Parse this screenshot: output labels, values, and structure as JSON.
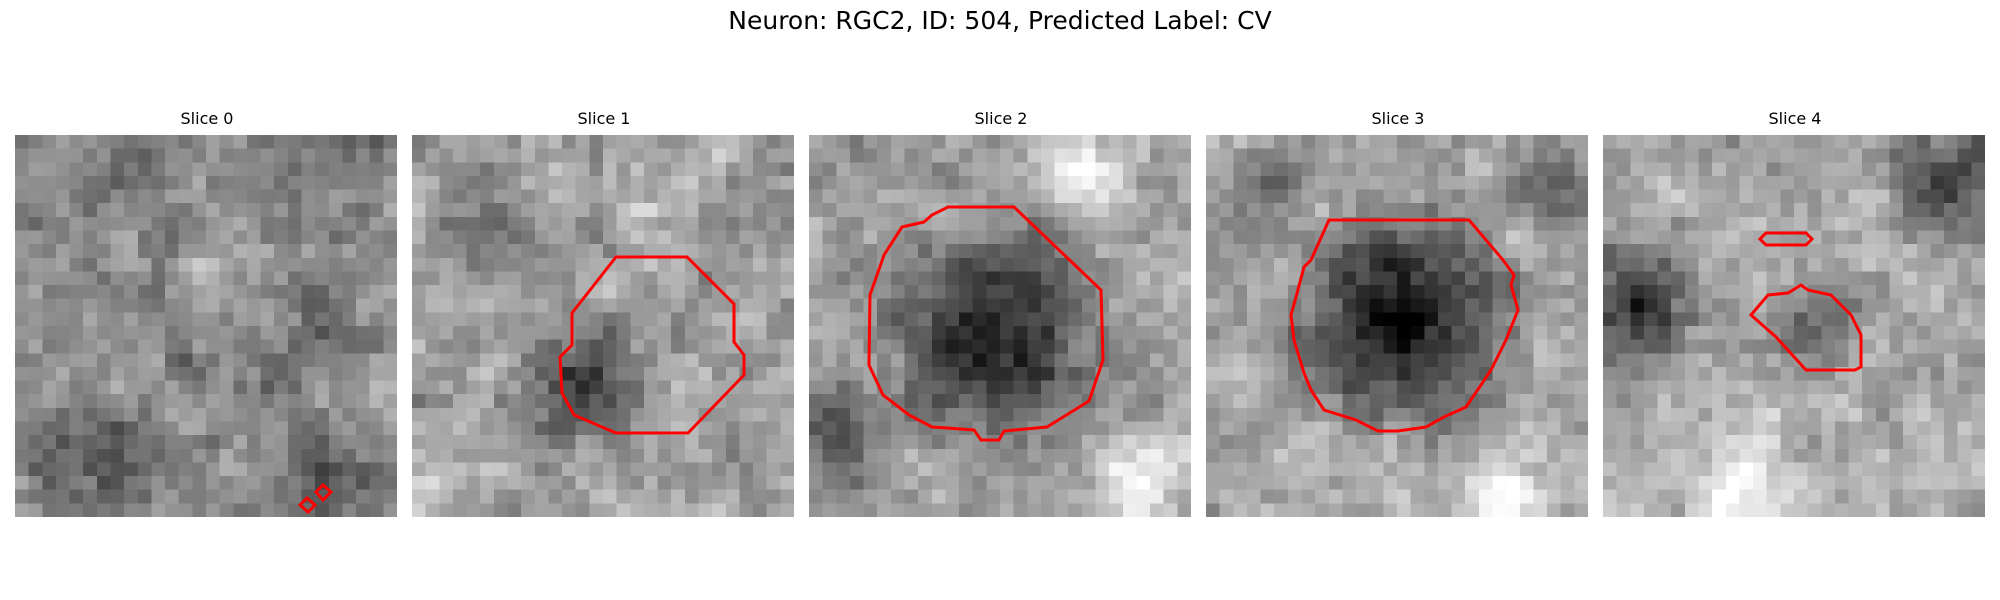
{
  "figure": {
    "title": "Neuron: RGC2, ID: 504, Predicted Label: CV"
  },
  "panels": [
    {
      "title": "Slice 0",
      "contour_color": "#ff0000"
    },
    {
      "title": "Slice 1",
      "contour_color": "#ff0000"
    },
    {
      "title": "Slice 2",
      "contour_color": "#ff0000"
    },
    {
      "title": "Slice 3",
      "contour_color": "#ff0000"
    },
    {
      "title": "Slice 4",
      "contour_color": "#ff0000"
    }
  ]
}
